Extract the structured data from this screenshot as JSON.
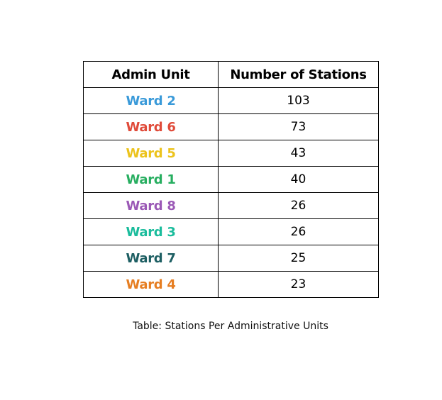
{
  "table": {
    "headers": {
      "unit": "Admin Unit",
      "count": "Number of Stations"
    },
    "rows": [
      {
        "unit": "Ward 2",
        "count": "103",
        "color": "#3a9ad9"
      },
      {
        "unit": "Ward 6",
        "count": "73",
        "color": "#e04b3a"
      },
      {
        "unit": "Ward 5",
        "count": "43",
        "color": "#ecc31c"
      },
      {
        "unit": "Ward 1",
        "count": "40",
        "color": "#27ae60"
      },
      {
        "unit": "Ward 8",
        "count": "26",
        "color": "#9b59b6"
      },
      {
        "unit": "Ward 3",
        "count": "26",
        "color": "#1abc9c"
      },
      {
        "unit": "Ward 7",
        "count": "25",
        "color": "#1e5f63"
      },
      {
        "unit": "Ward 4",
        "count": "23",
        "color": "#e67e22"
      }
    ]
  },
  "caption": "Table: Stations Per Administrative Units"
}
